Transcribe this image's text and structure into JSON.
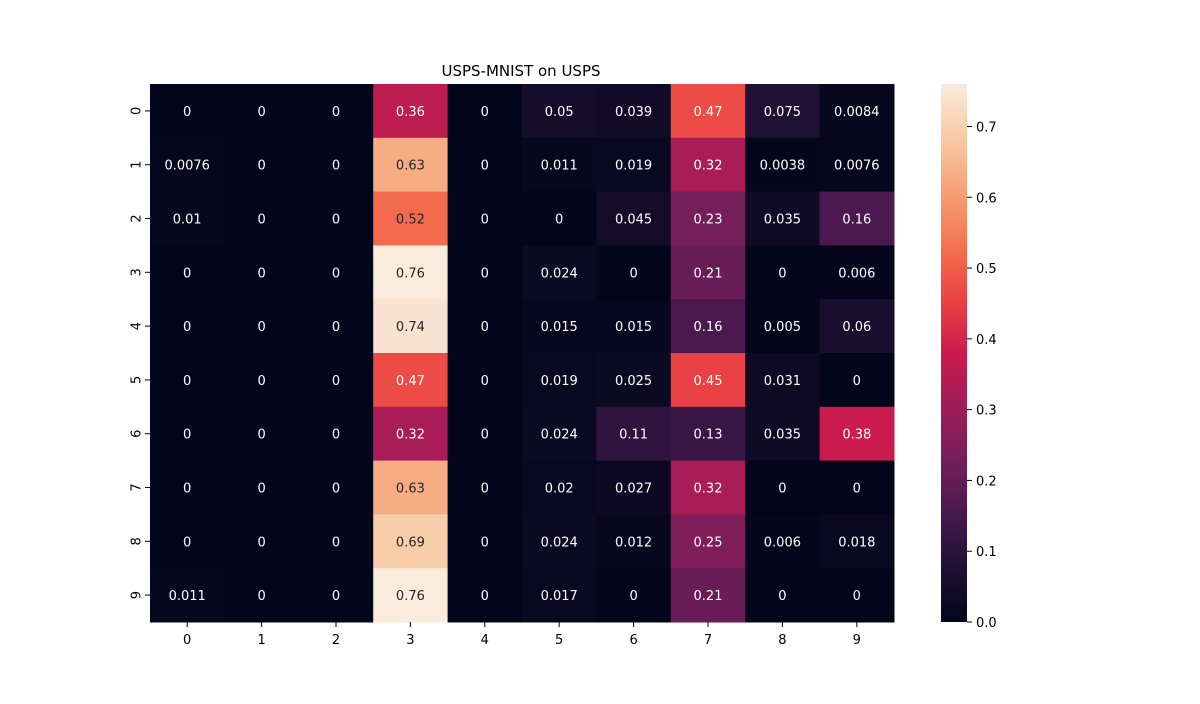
{
  "chart_data": {
    "type": "heatmap",
    "title": "USPS-MNIST on USPS",
    "xlabel": "",
    "ylabel": "",
    "x_categories": [
      "0",
      "1",
      "2",
      "3",
      "4",
      "5",
      "6",
      "7",
      "8",
      "9"
    ],
    "y_categories": [
      "0",
      "1",
      "2",
      "3",
      "4",
      "5",
      "6",
      "7",
      "8",
      "9"
    ],
    "values": [
      [
        0,
        0,
        0,
        0.36,
        0,
        0.05,
        0.039,
        0.47,
        0.075,
        0.0084
      ],
      [
        0.0076,
        0,
        0,
        0.63,
        0,
        0.011,
        0.019,
        0.32,
        0.0038,
        0.0076
      ],
      [
        0.01,
        0,
        0,
        0.52,
        0,
        0,
        0.045,
        0.23,
        0.035,
        0.16
      ],
      [
        0,
        0,
        0,
        0.76,
        0,
        0.024,
        0,
        0.21,
        0,
        0.006
      ],
      [
        0,
        0,
        0,
        0.74,
        0,
        0.015,
        0.015,
        0.16,
        0.005,
        0.06
      ],
      [
        0,
        0,
        0,
        0.47,
        0,
        0.019,
        0.025,
        0.45,
        0.031,
        0
      ],
      [
        0,
        0,
        0,
        0.32,
        0,
        0.024,
        0.11,
        0.13,
        0.035,
        0.38
      ],
      [
        0,
        0,
        0,
        0.63,
        0,
        0.02,
        0.027,
        0.32,
        0,
        0
      ],
      [
        0,
        0,
        0,
        0.69,
        0,
        0.024,
        0.012,
        0.25,
        0.006,
        0.018
      ],
      [
        0.011,
        0,
        0,
        0.76,
        0,
        0.017,
        0,
        0.21,
        0,
        0
      ]
    ],
    "colorbar": {
      "range": [
        0,
        0.76
      ],
      "ticks": [
        "0.0",
        "0.1",
        "0.2",
        "0.3",
        "0.4",
        "0.5",
        "0.6",
        "0.7"
      ],
      "colormap": "rocket"
    },
    "grid": false,
    "legend": "colorbar-right"
  }
}
